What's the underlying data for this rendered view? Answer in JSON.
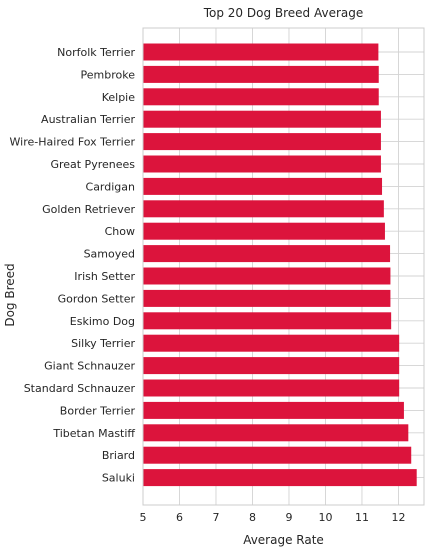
{
  "chart_data": {
    "type": "bar",
    "orientation": "horizontal",
    "title": "Top 20 Dog Breed Average",
    "xlabel": "Average Rate",
    "ylabel": "Dog Breed",
    "categories": [
      "Norfolk Terrier",
      "Pembroke",
      "Kelpie",
      "Australian Terrier",
      "Wire-Haired Fox Terrier",
      "Great Pyrenees",
      "Cardigan",
      "Golden Retriever",
      "Chow",
      "Samoyed",
      "Irish Setter",
      "Gordon Setter",
      "Eskimo Dog",
      "Silky Terrier",
      "Giant Schnauzer",
      "Standard Schnauzer",
      "Border Terrier",
      "Tibetan Mastiff",
      "Briard",
      "Saluki"
    ],
    "values": [
      11.45,
      11.46,
      11.46,
      11.52,
      11.52,
      11.52,
      11.55,
      11.6,
      11.63,
      11.77,
      11.78,
      11.78,
      11.8,
      12.02,
      12.02,
      12.02,
      12.15,
      12.27,
      12.35,
      12.5
    ],
    "xlim": [
      5,
      12.7
    ],
    "xticks": [
      5,
      6,
      7,
      8,
      9,
      10,
      11,
      12
    ],
    "grid": true,
    "bar_color": "#dc143c",
    "gridline_color": "#d3d3d3",
    "frame_color": "#cccccc",
    "text_color": "#262626"
  }
}
